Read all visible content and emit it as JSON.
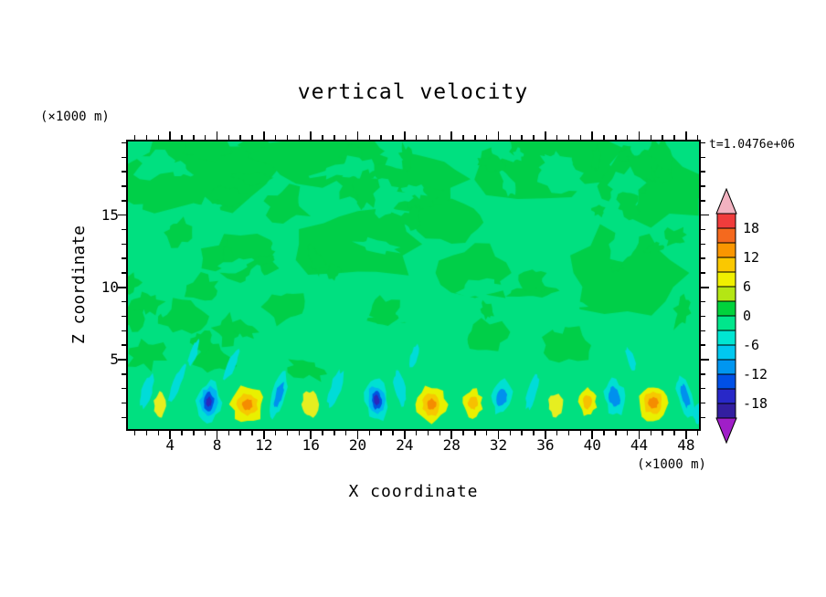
{
  "figure": {
    "title": "vertical velocity",
    "timestamp": "t=1.0476e+06",
    "x_axis": {
      "label": "X coordinate",
      "unit": "(×1000 m)",
      "ticks": [
        4,
        8,
        12,
        16,
        20,
        24,
        28,
        32,
        36,
        40,
        44,
        48
      ],
      "minor_step": 1,
      "range": [
        0.4,
        49.1
      ]
    },
    "y_axis": {
      "label": "Z coordinate",
      "unit": "(×1000 m)",
      "ticks": [
        5,
        10,
        15
      ],
      "minor_step": 1,
      "range": [
        0.2,
        20.1
      ]
    }
  },
  "colorbar": {
    "labels": [
      "18",
      "12",
      "6",
      "0",
      "-6",
      "-12",
      "-18"
    ],
    "level_min": -21,
    "level_max": 21,
    "level_step": 3,
    "over_arrow_color": "#f2b2c0",
    "under_arrow_color": "#a01ec8",
    "segment_colors_top_to_bottom": [
      "#f03c3c",
      "#f5691e",
      "#fa9600",
      "#fac800",
      "#f0f000",
      "#b4e614",
      "#00d23c",
      "#00e68c",
      "#00e6d2",
      "#00c8f0",
      "#0096f0",
      "#0050e6",
      "#2828c8",
      "#321ea0"
    ]
  },
  "chart_data": {
    "type": "heatmap",
    "subtype": "filled-contour",
    "title": "vertical velocity",
    "xlabel": "X coordinate (×1000 m)",
    "ylabel": "Z coordinate (×1000 m)",
    "xlim": [
      0.4,
      49.1
    ],
    "ylim": [
      0.2,
      20.1
    ],
    "contour_interval": 3,
    "labeled_levels": [
      18,
      12,
      6,
      0,
      -6,
      -12,
      -18
    ],
    "timestamp": "t=1.0476e+06",
    "legend_position": "right-colorbar",
    "grid": false,
    "background_band_colors": {
      "near_zero_negative": "#00e080",
      "near_zero_positive": "#00cf48"
    },
    "description": "Vertical velocity cross-section: field is near zero (mottled green) aloft; alternating updraft (yellow/orange) and downdraft (cyan/blue) cells below z≈4 km with slanted wave streaks.",
    "features": [
      {
        "x": 2.0,
        "z": 2.8,
        "rx": 0.45,
        "rz": 1.2,
        "sign": "neg",
        "strength": 1,
        "tilt": 18,
        "peak": -4
      },
      {
        "x": 3.1,
        "z": 1.8,
        "rx": 0.5,
        "rz": 0.9,
        "sign": "pos",
        "strength": 1,
        "tilt": 0,
        "peak": 4
      },
      {
        "x": 4.6,
        "z": 3.4,
        "rx": 0.35,
        "rz": 1.3,
        "sign": "neg",
        "strength": 1,
        "tilt": 22,
        "peak": -4
      },
      {
        "x": 7.3,
        "z": 2.1,
        "rx": 1.0,
        "rz": 1.35,
        "sign": "neg",
        "strength": 3,
        "tilt": 5,
        "peak": -16
      },
      {
        "x": 10.6,
        "z": 1.9,
        "rx": 1.35,
        "rz": 1.25,
        "sign": "pos",
        "strength": 3,
        "tilt": 0,
        "peak": 14
      },
      {
        "x": 9.2,
        "z": 4.6,
        "rx": 0.35,
        "rz": 1.1,
        "sign": "neg",
        "strength": 1,
        "tilt": 25,
        "peak": -4
      },
      {
        "x": 13.3,
        "z": 2.6,
        "rx": 0.55,
        "rz": 1.6,
        "sign": "neg",
        "strength": 2,
        "tilt": 15,
        "peak": -8
      },
      {
        "x": 15.9,
        "z": 1.9,
        "rx": 0.7,
        "rz": 0.9,
        "sign": "pos",
        "strength": 1,
        "tilt": 0,
        "peak": 5
      },
      {
        "x": 18.1,
        "z": 3.0,
        "rx": 0.45,
        "rz": 1.3,
        "sign": "neg",
        "strength": 1,
        "tilt": 18,
        "peak": -5
      },
      {
        "x": 21.6,
        "z": 2.2,
        "rx": 0.95,
        "rz": 1.4,
        "sign": "neg",
        "strength": 3,
        "tilt": -5,
        "peak": -15
      },
      {
        "x": 23.6,
        "z": 3.0,
        "rx": 0.45,
        "rz": 1.2,
        "sign": "neg",
        "strength": 1,
        "tilt": -12,
        "peak": -5
      },
      {
        "x": 26.3,
        "z": 1.9,
        "rx": 1.25,
        "rz": 1.2,
        "sign": "pos",
        "strength": 3,
        "tilt": 0,
        "peak": 13
      },
      {
        "x": 29.8,
        "z": 2.0,
        "rx": 0.8,
        "rz": 0.95,
        "sign": "pos",
        "strength": 2,
        "tilt": 0,
        "peak": 8
      },
      {
        "x": 32.3,
        "z": 2.4,
        "rx": 0.8,
        "rz": 1.15,
        "sign": "neg",
        "strength": 2,
        "tilt": 8,
        "peak": -9
      },
      {
        "x": 34.9,
        "z": 2.8,
        "rx": 0.4,
        "rz": 1.3,
        "sign": "neg",
        "strength": 1,
        "tilt": 15,
        "peak": -4
      },
      {
        "x": 36.9,
        "z": 1.9,
        "rx": 0.6,
        "rz": 0.8,
        "sign": "pos",
        "strength": 1,
        "tilt": 0,
        "peak": 4
      },
      {
        "x": 39.6,
        "z": 2.1,
        "rx": 0.75,
        "rz": 0.95,
        "sign": "pos",
        "strength": 2,
        "tilt": 0,
        "peak": 7
      },
      {
        "x": 41.9,
        "z": 2.4,
        "rx": 0.85,
        "rz": 1.25,
        "sign": "neg",
        "strength": 2,
        "tilt": -8,
        "peak": -10
      },
      {
        "x": 45.2,
        "z": 2.0,
        "rx": 1.3,
        "rz": 1.25,
        "sign": "pos",
        "strength": 3,
        "tilt": 0,
        "peak": 13
      },
      {
        "x": 47.9,
        "z": 2.5,
        "rx": 0.6,
        "rz": 1.5,
        "sign": "neg",
        "strength": 2,
        "tilt": -15,
        "peak": -9
      },
      {
        "x": 49.0,
        "z": 1.3,
        "rx": 0.4,
        "rz": 0.7,
        "sign": "neg",
        "strength": 1,
        "tilt": 0,
        "peak": -4
      },
      {
        "x": 6.0,
        "z": 5.5,
        "rx": 0.3,
        "rz": 0.9,
        "sign": "neg",
        "strength": 1,
        "tilt": 20,
        "peak": -4
      },
      {
        "x": 24.8,
        "z": 5.2,
        "rx": 0.3,
        "rz": 0.8,
        "sign": "neg",
        "strength": 1,
        "tilt": 15,
        "peak": -4
      },
      {
        "x": 43.3,
        "z": 5.0,
        "rx": 0.3,
        "rz": 0.9,
        "sign": "neg",
        "strength": 1,
        "tilt": -18,
        "peak": -4
      }
    ],
    "background_patches": [
      {
        "x": 6,
        "z": 18,
        "rx": 7,
        "rz": 2.5
      },
      {
        "x": 17,
        "z": 19,
        "rx": 6,
        "rz": 2.0
      },
      {
        "x": 25,
        "z": 17.5,
        "rx": 4,
        "rz": 2.0
      },
      {
        "x": 36,
        "z": 18.5,
        "rx": 6,
        "rz": 2.5
      },
      {
        "x": 45,
        "z": 17,
        "rx": 5,
        "rz": 2.5
      },
      {
        "x": 20,
        "z": 13,
        "rx": 5,
        "rz": 2.5
      },
      {
        "x": 30,
        "z": 11,
        "rx": 3,
        "rz": 2.0
      },
      {
        "x": 43,
        "z": 11,
        "rx": 5,
        "rz": 3.0
      },
      {
        "x": 10,
        "z": 12,
        "rx": 3,
        "rz": 1.5
      },
      {
        "x": 28,
        "z": 14.5,
        "rx": 3,
        "rz": 1.5
      },
      {
        "x": 38,
        "z": 6,
        "rx": 2,
        "rz": 1.2
      },
      {
        "x": 5,
        "z": 8,
        "rx": 2,
        "rz": 1.2
      }
    ]
  }
}
